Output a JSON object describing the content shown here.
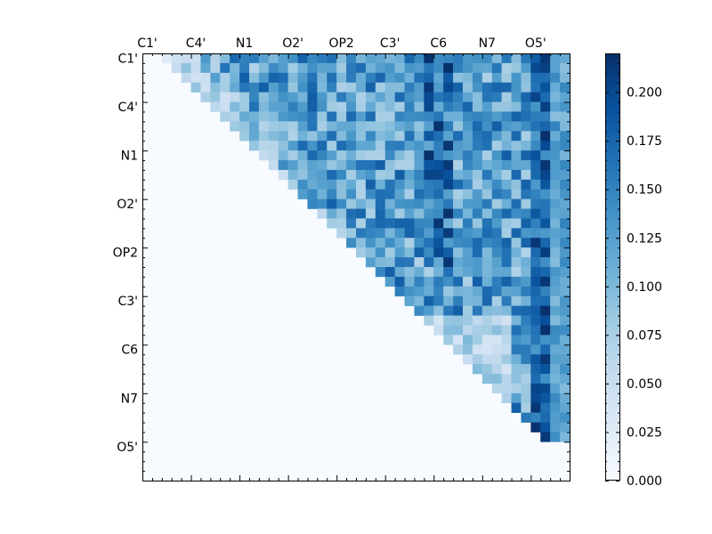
{
  "chart_data": [
    {
      "type": "heatmap",
      "title": "",
      "xlabel": "",
      "ylabel": "",
      "x_tick_labels": [
        "C1'",
        "C4'",
        "N1",
        "O2'",
        "OP2",
        "C3'",
        "C6",
        "N7",
        "O5'"
      ],
      "y_tick_labels": [
        "C1'",
        "C4'",
        "N1",
        "O2'",
        "OP2",
        "C3'",
        "C6",
        "N7",
        "O5'"
      ],
      "n_rows": 44,
      "n_cols": 44,
      "label_interval": 5,
      "colormap": [
        "#f7fbff",
        "#deebf7",
        "#c6dbef",
        "#9ecae1",
        "#6baed6",
        "#4292c6",
        "#2171b5",
        "#08519c",
        "#08306b"
      ],
      "value_range": [
        0.0,
        0.22
      ],
      "matrix_structure": "upper triangle above diagonal band; strong column near index 40 (O5')",
      "representative_values": {
        "upper_region_typical": [
          0.05,
          0.15
        ],
        "o5_column_peak": 0.22,
        "lower_triangle": 0.0
      },
      "colorbar_ticks": [
        "0.000",
        "0.025",
        "0.050",
        "0.075",
        "0.100",
        "0.125",
        "0.150",
        "0.175",
        "0.200"
      ],
      "colorbar_tick_values": [
        0.0,
        0.025,
        0.05,
        0.075,
        0.1,
        0.125,
        0.15,
        0.175,
        0.2
      ]
    }
  ]
}
